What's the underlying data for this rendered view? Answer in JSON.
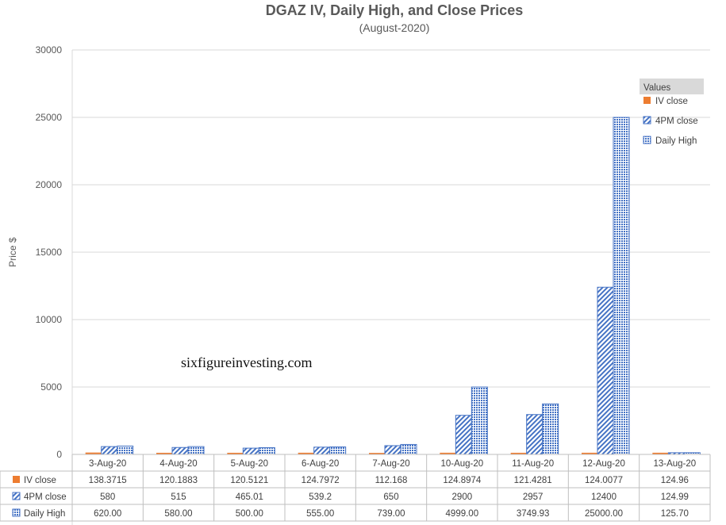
{
  "chart_data": {
    "type": "bar",
    "title": "DGAZ IV, Daily High, and Close Prices",
    "subtitle": "(August-2020)",
    "ylabel": "Price $",
    "ylim": [
      0,
      30000
    ],
    "yticks": [
      0,
      5000,
      10000,
      15000,
      20000,
      25000,
      30000
    ],
    "grid": true,
    "legend_title": "Values",
    "legend_position": "top-right",
    "categories": [
      "3-Aug-20",
      "4-Aug-20",
      "5-Aug-20",
      "6-Aug-20",
      "7-Aug-20",
      "10-Aug-20",
      "11-Aug-20",
      "12-Aug-20",
      "13-Aug-20"
    ],
    "series": [
      {
        "name": "IV close",
        "color": "#ED7D31",
        "pattern": "solid",
        "values": [
          138.3715,
          120.1883,
          120.5121,
          124.7972,
          112.168,
          124.8974,
          121.4281,
          124.0077,
          124.96
        ],
        "labels": [
          "138.3715",
          "120.1883",
          "120.5121",
          "124.7972",
          "112.168",
          "124.8974",
          "121.4281",
          "124.0077",
          "124.96"
        ]
      },
      {
        "name": "4PM close",
        "color": "#4472C4",
        "pattern": "diagonal",
        "values": [
          580,
          515,
          465.01,
          539.2,
          650,
          2900,
          2957,
          12400,
          124.99
        ],
        "labels": [
          "580",
          "515",
          "465.01",
          "539.2",
          "650",
          "2900",
          "2957",
          "12400",
          "124.99"
        ]
      },
      {
        "name": "Daily High",
        "color": "#4472C4",
        "pattern": "dotted",
        "values": [
          620,
          580,
          500,
          555,
          739,
          4999,
          3749.93,
          25000,
          125.7
        ],
        "labels": [
          "620.00",
          "580.00",
          "500.00",
          "555.00",
          "739.00",
          "4999.00",
          "3749.93",
          "25000.00",
          "125.70"
        ]
      }
    ],
    "annotation": "sixfigureinvesting.com"
  }
}
